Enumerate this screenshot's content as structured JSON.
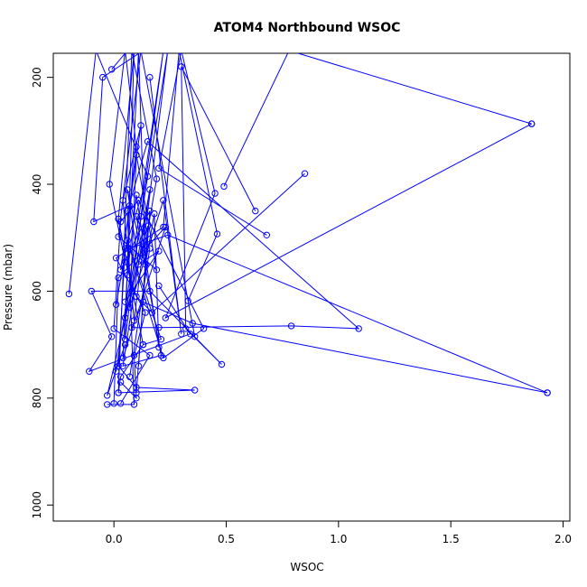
{
  "chart_data": {
    "type": "line",
    "title": "ATOM4 Northbound WSOC",
    "xlabel": "WSOC",
    "ylabel": "Pressure (mbar)",
    "xlim": [
      -0.27,
      2.03
    ],
    "ylim": [
      1030,
      155
    ],
    "y_reversed": true,
    "xticks": [
      {
        "value": 0,
        "label": "0.0"
      },
      {
        "value": 0.5,
        "label": "0.5"
      },
      {
        "value": 1.0,
        "label": "1.0"
      },
      {
        "value": 1.5,
        "label": "1.5"
      },
      {
        "value": 2.0,
        "label": "2.0"
      }
    ],
    "yticks": [
      {
        "value": 200,
        "label": "200"
      },
      {
        "value": 400,
        "label": "400"
      },
      {
        "value": 600,
        "label": "600"
      },
      {
        "value": 800,
        "label": "800"
      },
      {
        "value": 1000,
        "label": "1000"
      }
    ],
    "grid": false,
    "legend": "none",
    "color": "#0000ff",
    "series": [
      {
        "points": [
          [
            -0.01,
            185
          ],
          [
            0.06,
            150
          ],
          [
            0.05,
            150
          ],
          [
            0.1,
            330
          ],
          [
            0.07,
            440
          ],
          [
            -0.09,
            470
          ],
          [
            -0.05,
            200
          ],
          [
            0.13,
            150
          ]
        ]
      },
      {
        "points": [
          [
            1.86,
            287
          ],
          [
            0.78,
            150
          ],
          [
            0.49,
            404
          ]
        ]
      },
      {
        "points": [
          [
            0.85,
            380
          ],
          [
            0.17,
            640
          ],
          [
            0.1,
            610
          ],
          [
            0.05,
            545
          ],
          [
            -0.02,
            400
          ],
          [
            0.05,
            150
          ]
        ]
      },
      {
        "points": [
          [
            0.68,
            495
          ],
          [
            0.2,
            370
          ],
          [
            0.3,
            150
          ],
          [
            0.45,
            417
          ],
          [
            0.23,
            650
          ],
          [
            1.86,
            287
          ]
        ]
      },
      {
        "points": [
          [
            0.63,
            450
          ],
          [
            0.3,
            180
          ],
          [
            0.32,
            670
          ],
          [
            0.48,
            737
          ],
          [
            0.16,
            600
          ],
          [
            -0.1,
            600
          ],
          [
            -0.01,
            685
          ],
          [
            -0.11,
            750
          ],
          [
            0.34,
            680
          ],
          [
            0.2,
            590
          ]
        ]
      },
      {
        "points": [
          [
            -0.2,
            605
          ],
          [
            -0.08,
            150
          ],
          [
            0.15,
            385
          ],
          [
            0.05,
            520
          ],
          [
            0.02,
            740
          ],
          [
            0.1,
            780
          ],
          [
            0.36,
            785
          ],
          [
            0.02,
            790
          ]
        ]
      },
      {
        "points": [
          [
            1.93,
            790
          ],
          [
            0.35,
            660
          ],
          [
            0.13,
            620
          ],
          [
            0.08,
            668
          ],
          [
            0.2,
            668
          ],
          [
            0.79,
            665
          ],
          [
            1.09,
            670
          ],
          [
            0.15,
            320
          ],
          [
            0.06,
            450
          ],
          [
            0.09,
            812
          ],
          [
            -0.03,
            812
          ]
        ]
      },
      {
        "points": [
          [
            1.93,
            790
          ],
          [
            0.24,
            495
          ],
          [
            0.07,
            520
          ],
          [
            0.22,
            725
          ],
          [
            0.4,
            670
          ],
          [
            0.11,
            430
          ],
          [
            0.03,
            470
          ],
          [
            0.0,
            670
          ],
          [
            0.16,
            720
          ],
          [
            0.03,
            810
          ]
        ]
      },
      {
        "points": [
          [
            0.33,
            618
          ],
          [
            0.46,
            493
          ],
          [
            0.29,
            150
          ],
          [
            0.22,
            480
          ],
          [
            0.01,
            538
          ],
          [
            0.14,
            640
          ],
          [
            0.09,
            720
          ],
          [
            0.1,
            800
          ],
          [
            0.03,
            770
          ]
        ]
      },
      {
        "points": [
          [
            0.36,
            685
          ],
          [
            0.12,
            150
          ],
          [
            0.02,
            498
          ],
          [
            0.19,
            560
          ],
          [
            0.1,
            345
          ],
          [
            0.07,
            630
          ],
          [
            0.22,
            430
          ],
          [
            0.3,
            680
          ],
          [
            0.16,
            200
          ]
        ]
      },
      {
        "points": [
          [
            0.13,
            700
          ],
          [
            0.03,
            760
          ],
          [
            0.02,
            790
          ],
          [
            0.08,
            150
          ],
          [
            0.19,
            390
          ],
          [
            0.13,
            537
          ],
          [
            0.06,
            410
          ],
          [
            0.11,
            550
          ],
          [
            0.2,
            525
          ],
          [
            0.05,
            620
          ]
        ]
      },
      {
        "points": [
          [
            0.07,
            760
          ],
          [
            0.16,
            520
          ],
          [
            0.1,
            460
          ],
          [
            0.21,
            720
          ],
          [
            0.04,
            740
          ],
          [
            0.16,
            410
          ],
          [
            0.08,
            600
          ],
          [
            -0.03,
            795
          ],
          [
            0.05,
            700
          ]
        ]
      },
      {
        "points": [
          [
            0.0,
            810
          ],
          [
            0.02,
            575
          ],
          [
            0.23,
            480
          ],
          [
            0.04,
            725
          ],
          [
            0.11,
            150
          ],
          [
            0.14,
            550
          ],
          [
            0.18,
            455
          ],
          [
            0.2,
            705
          ],
          [
            0.1,
            420
          ],
          [
            0.06,
            570
          ]
        ]
      },
      {
        "points": [
          [
            0.01,
            750
          ],
          [
            0.22,
            150
          ],
          [
            0.12,
            460
          ],
          [
            0.05,
            690
          ],
          [
            0.09,
            150
          ],
          [
            0.02,
            465
          ],
          [
            0.13,
            700
          ],
          [
            0.21,
            690
          ],
          [
            0.06,
            505
          ],
          [
            0.01,
            625
          ]
        ]
      },
      {
        "points": [
          [
            0.11,
            740
          ],
          [
            0.15,
            478
          ],
          [
            0.05,
            650
          ],
          [
            0.24,
            150
          ],
          [
            0.09,
            655
          ],
          [
            0.04,
            430
          ],
          [
            0.12,
            290
          ],
          [
            0.03,
            560
          ],
          [
            0.16,
            450
          ],
          [
            0.1,
            790
          ]
        ]
      }
    ]
  }
}
